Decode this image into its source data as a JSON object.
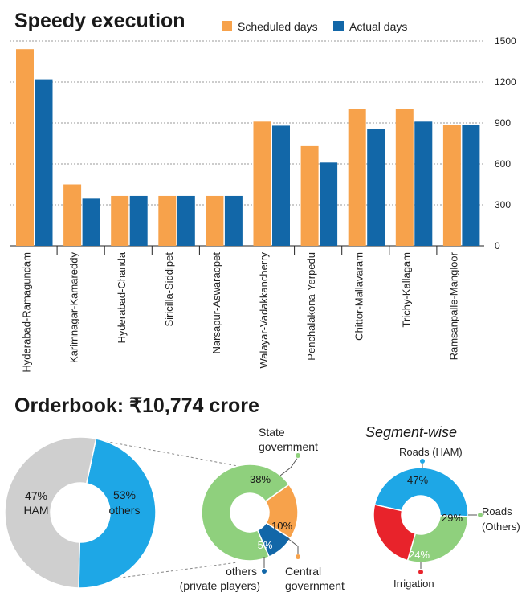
{
  "chart_data": [
    {
      "type": "bar",
      "title": "Speedy execution",
      "categories": [
        "Hyderabad-Ramagundam",
        "Karimnagar-Kamareddy",
        "Hyderabad-Chanda",
        "Siricilla-Siddipet",
        "Narsapur-Aswaraopet",
        "Walayar-Vadakkancherry",
        "Penchalakona-Yerpedu",
        "Chittor-Mallavaram",
        "Trichy-Kallagam",
        "Ramsanpalle-Mangloor"
      ],
      "series": [
        {
          "name": "Scheduled days",
          "color": "#f7a24b",
          "values": [
            1440,
            450,
            365,
            365,
            365,
            910,
            730,
            1000,
            1000,
            885
          ]
        },
        {
          "name": "Actual days",
          "color": "#1267a8",
          "values": [
            1220,
            345,
            365,
            365,
            365,
            880,
            610,
            855,
            910,
            885
          ]
        }
      ],
      "yticks": [
        0,
        300,
        600,
        900,
        1200,
        1500
      ],
      "ylim": [
        0,
        1500
      ],
      "grid": true,
      "legend": "top",
      "axis_position": "right"
    },
    {
      "type": "pie",
      "title": "Orderbook: ₹10,774 crore",
      "slices": [
        {
          "label": "HAM",
          "value": 47,
          "display": "47%",
          "color": "#1ea7e6"
        },
        {
          "label": "others",
          "value": 53,
          "display": "53%",
          "color": "#cfcfcf"
        }
      ]
    },
    {
      "type": "pie",
      "slices": [
        {
          "label": "State government",
          "value": 38,
          "display": "38%",
          "color": "#8fd07d"
        },
        {
          "label": "Central government",
          "value": 10,
          "display": "10%",
          "color": "#f7a24b"
        },
        {
          "label": "others (private players)",
          "value": 5,
          "display": "5%",
          "color": "#1267a8"
        }
      ]
    },
    {
      "type": "pie",
      "title": "Segment-wise",
      "slices": [
        {
          "label": "Roads (HAM)",
          "value": 47,
          "display": "47%",
          "color": "#1ea7e6"
        },
        {
          "label": "Roads (Others)",
          "value": 29,
          "display": "29%",
          "color": "#8fd07d"
        },
        {
          "label": "Irrigation",
          "value": 24,
          "display": "24%",
          "color": "#e8232b"
        }
      ]
    }
  ],
  "labels": {
    "state_gov": [
      "State",
      "government"
    ],
    "central_gov": [
      "Central",
      "government"
    ],
    "private": [
      "others",
      "(private players)"
    ],
    "roads_ham": [
      "Roads (HAM)"
    ],
    "roads_others": [
      "Roads",
      "(Others)"
    ],
    "irrigation": [
      "Irrigation"
    ],
    "ham_inner": [
      "47%",
      "HAM"
    ],
    "others_inner": [
      "53%",
      "others"
    ]
  }
}
